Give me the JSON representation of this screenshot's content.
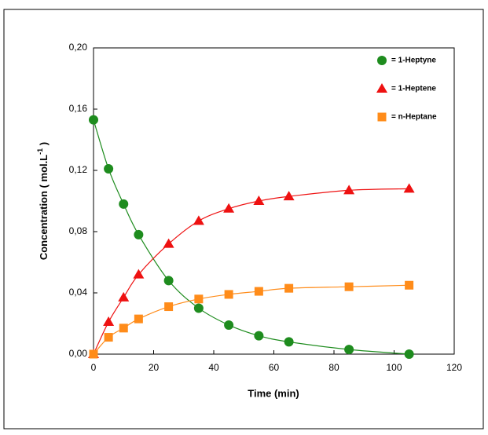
{
  "chart_data": {
    "type": "line",
    "x_label": "Time (min)",
    "y_label": "Concentration ( mol.L",
    "y_label_sup": "-1",
    "y_label_end": " )",
    "x": [
      0,
      5,
      10,
      15,
      25,
      35,
      45,
      55,
      65,
      85,
      105
    ],
    "series": [
      {
        "name": "= 1-Heptyne",
        "color": "#1e8c1e",
        "marker": "circle",
        "values": [
          0.153,
          0.121,
          0.098,
          0.078,
          0.048,
          0.03,
          0.019,
          0.012,
          0.008,
          0.003,
          0.0
        ]
      },
      {
        "name": "= 1-Heptene",
        "color": "#ee1111",
        "marker": "triangle",
        "values": [
          0,
          0.021,
          0.037,
          0.052,
          0.072,
          0.087,
          0.095,
          0.1,
          0.103,
          0.107,
          0.108
        ]
      },
      {
        "name": "= n-Heptane",
        "color": "#ff8c1a",
        "marker": "square",
        "values": [
          0,
          0.011,
          0.017,
          0.023,
          0.031,
          0.036,
          0.039,
          0.041,
          0.043,
          0.044,
          0.045
        ]
      }
    ],
    "xlim": [
      0,
      120
    ],
    "xticks": [
      0,
      20,
      40,
      60,
      80,
      100,
      120
    ],
    "ylim": [
      0,
      0.2
    ],
    "yticks": [
      {
        "value": 0,
        "label": "0,00"
      },
      {
        "value": 0.04,
        "label": "0,04"
      },
      {
        "value": 0.08,
        "label": "0,08"
      },
      {
        "value": 0.12,
        "label": "0,12"
      },
      {
        "value": 0.16,
        "label": "0,16"
      },
      {
        "value": 0.2,
        "label": "0,20"
      }
    ],
    "legend": "top-right"
  }
}
